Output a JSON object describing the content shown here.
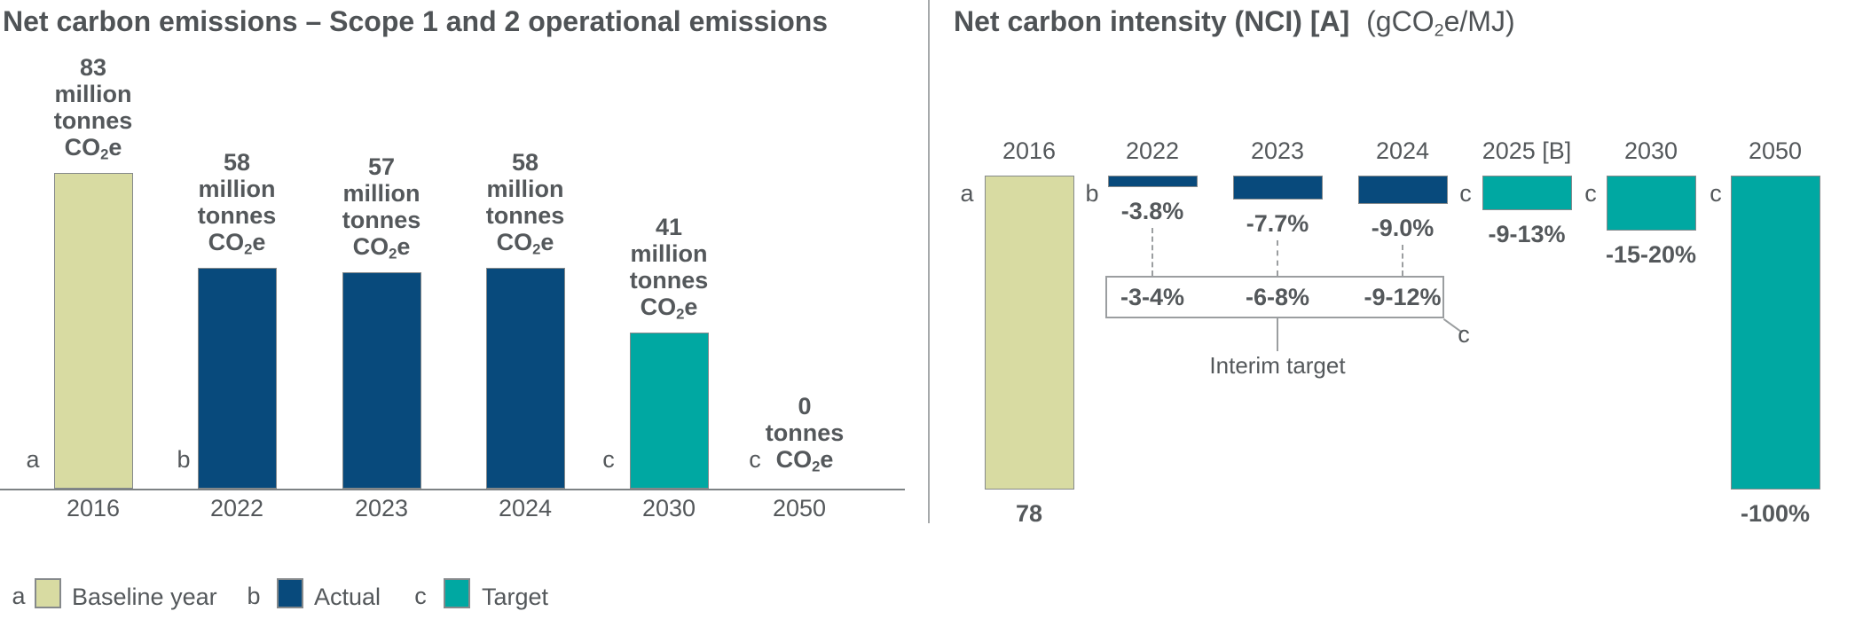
{
  "page": {
    "background": "#ffffff"
  },
  "colors": {
    "baseline": "#d8dba2",
    "actual": "#084a7c",
    "target": "#00a8a2",
    "text": "#54585b",
    "title_text": "#4f5356",
    "axis_line": "#7d8284",
    "muted_line": "#9b9ea0"
  },
  "chart_data": [
    {
      "type": "bar",
      "title": "Net carbon emissions – Scope 1 and 2 operational emissions",
      "value_unit": "million tonnes CO2e",
      "categories": [
        "2016",
        "2022",
        "2023",
        "2024",
        "2030",
        "2050"
      ],
      "values": [
        83,
        58,
        57,
        58,
        41,
        0
      ],
      "bar_roles": [
        "baseline",
        "actual",
        "actual",
        "actual",
        "target",
        "target"
      ],
      "bar_letters": [
        "a",
        "b",
        "",
        "",
        "c",
        "c"
      ],
      "bar_labels": [
        [
          "83",
          "million",
          "tonnes",
          "CO2e"
        ],
        [
          "58",
          "million",
          "tonnes",
          "CO2e"
        ],
        [
          "57",
          "million",
          "tonnes",
          "CO2e"
        ],
        [
          "58",
          "million",
          "tonnes",
          "CO2e"
        ],
        [
          "41",
          "million",
          "tonnes",
          "CO2e"
        ],
        [
          "0",
          "tonnes",
          "CO2e"
        ]
      ],
      "ylim": [
        0,
        83
      ],
      "grid": false,
      "axis_line": "bottom"
    },
    {
      "type": "bar",
      "title": "Net carbon intensity (NCI) [A]",
      "title_suffix": "(gCO2e/MJ)",
      "categories": [
        "2016",
        "2022",
        "2023",
        "2024",
        "2025 [B]",
        "2030",
        "2050"
      ],
      "baseline_value_label": "78",
      "values_pct_change": [
        null,
        -3.8,
        -7.7,
        -9.0,
        -11,
        -17.5,
        -100
      ],
      "bar_value_labels": [
        "78",
        "-3.8%",
        "-7.7%",
        "-9.0%",
        "-9-13%",
        "-15-20%",
        "-100%"
      ],
      "bar_roles": [
        "baseline",
        "actual",
        "actual",
        "actual",
        "target",
        "target",
        "target"
      ],
      "bar_letters": [
        "a",
        "b",
        "",
        "",
        "c",
        "c",
        "c"
      ],
      "interim_target": {
        "labels": [
          "-3-4%",
          "-6-8%",
          "-9-12%"
        ],
        "applies_to": [
          "2022",
          "2023",
          "2024"
        ],
        "caption": "Interim target",
        "callout_letter": "c"
      },
      "ylim": [
        -100,
        0
      ],
      "grid": false,
      "axis_line": "none"
    }
  ],
  "legend": {
    "items": [
      {
        "letter": "a",
        "label": "Baseline year",
        "role": "baseline"
      },
      {
        "letter": "b",
        "label": "Actual",
        "role": "actual"
      },
      {
        "letter": "c",
        "label": "Target",
        "role": "target"
      }
    ]
  }
}
